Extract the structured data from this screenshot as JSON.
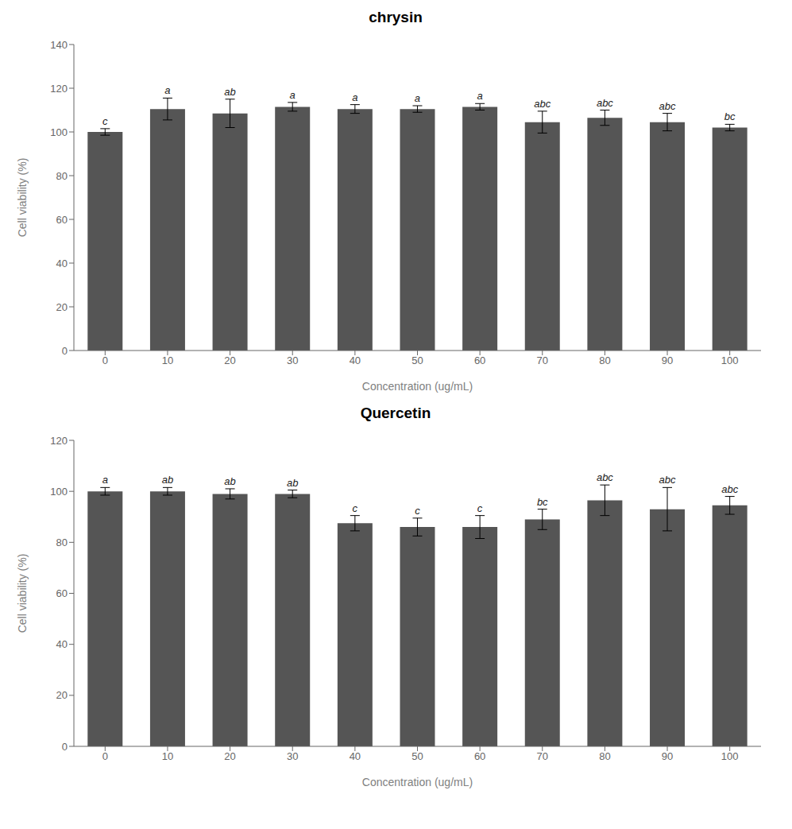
{
  "chart_data": [
    {
      "type": "bar",
      "title": "chrysin",
      "categories": [
        0,
        10,
        20,
        30,
        40,
        50,
        60,
        70,
        80,
        90,
        100
      ],
      "values": [
        100,
        110.5,
        108.5,
        111.5,
        110.5,
        110.5,
        111.5,
        104.5,
        106.5,
        104.5,
        102.0
      ],
      "errors": [
        1.5,
        5.0,
        6.5,
        2.0,
        2.0,
        1.5,
        1.5,
        5.0,
        3.5,
        4.0,
        1.5
      ],
      "annotations": [
        "c",
        "a",
        "ab",
        "a",
        "a",
        "a",
        "a",
        "abc",
        "abc",
        "abc",
        "bc"
      ],
      "color": "#555555",
      "ylim": [
        0,
        140
      ],
      "yticks": [
        0,
        20,
        40,
        60,
        80,
        100,
        120,
        140
      ],
      "ylabel": "Cell viability (%)",
      "xlabel": "Concentration (ug/mL)",
      "grid": false
    },
    {
      "type": "bar",
      "title": "Quercetin",
      "categories": [
        0,
        10,
        20,
        30,
        40,
        50,
        60,
        70,
        80,
        90,
        100
      ],
      "values": [
        100.0,
        100.0,
        99.0,
        99.0,
        87.5,
        86.0,
        86.0,
        89.0,
        96.5,
        93.0,
        94.5
      ],
      "errors": [
        1.5,
        1.5,
        2.0,
        1.5,
        3.0,
        3.5,
        4.5,
        4.0,
        6.0,
        8.5,
        3.5
      ],
      "annotations": [
        "a",
        "ab",
        "ab",
        "ab",
        "c",
        "c",
        "c",
        "bc",
        "abc",
        "abc",
        "abc"
      ],
      "color": "#555555",
      "ylim": [
        0,
        120
      ],
      "yticks": [
        0,
        20,
        40,
        60,
        80,
        100,
        120
      ],
      "ylabel": "Cell viability (%)",
      "xlabel": "Concentration (ug/mL)",
      "grid": false
    }
  ]
}
